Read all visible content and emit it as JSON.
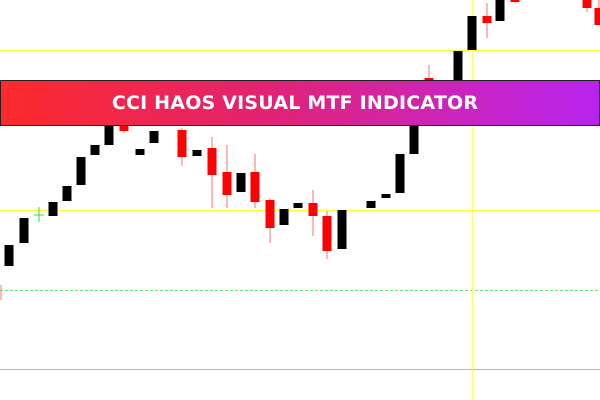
{
  "banner": {
    "title": "CCI HAOS VISUAL MTF INDICATOR"
  },
  "colors": {
    "bull_candle": "#000000",
    "bear_candle": "#ff0000",
    "bear_wick": "#ff7070",
    "level_line": "#ffff33",
    "crosshair": "#ffff66",
    "green_level": "#66ee66",
    "signal_cross": "#33dd33",
    "banner_start": "#fc2a2a",
    "banner_end": "#b824ee"
  }
}
